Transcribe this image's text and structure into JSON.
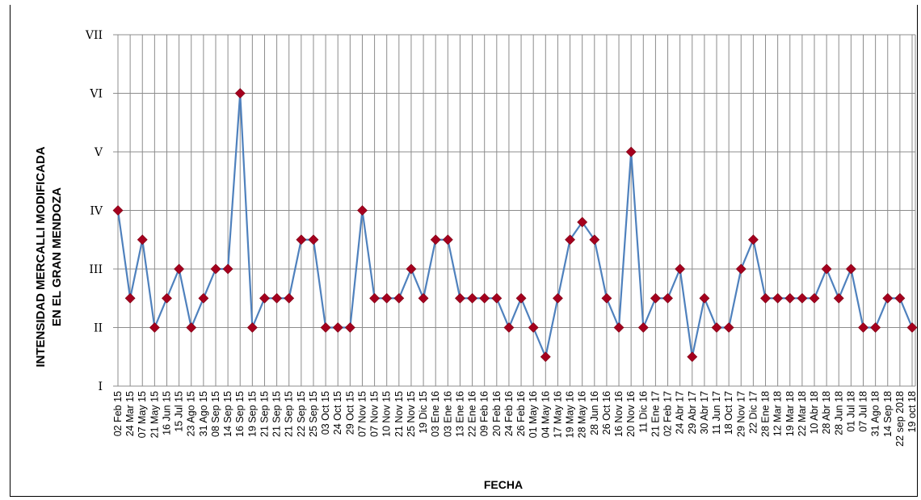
{
  "chart_data": {
    "type": "line",
    "xlabel": "FECHA",
    "ylabel_lines": [
      "INTENSIDAD MERCALLI MODIFICADA",
      "EN EL GRAN MENDOZA"
    ],
    "y_ticks": [
      {
        "value": 1,
        "label": "I"
      },
      {
        "value": 2,
        "label": "II"
      },
      {
        "value": 3,
        "label": "III"
      },
      {
        "value": 4,
        "label": "IV"
      },
      {
        "value": 5,
        "label": "V"
      },
      {
        "value": 6,
        "label": "VI"
      },
      {
        "value": 7,
        "label": "VII"
      }
    ],
    "ylim": [
      1,
      7
    ],
    "grid": true,
    "line_color": "#4f81bd",
    "marker_color": "#a5001e",
    "categories": [
      "02 Feb 15",
      "24 Mar 15",
      "07 May 15",
      "21 May 15",
      "16 Jun 15",
      "15 Jul 15",
      "23 Ago 15",
      "31 Ago 15",
      "08 Sep 15",
      "14 Sep 15",
      "16 Sep 15",
      "19 Sep 15",
      "21 Sep 15",
      "21 Sep 15",
      "21 Sep 15",
      "22 Sep 15",
      "25 Sep 15",
      "03 Oct 15",
      "24 Oct 15",
      "29 Oct 15",
      "07 Nov 15",
      "07 Nov 15",
      "10 Nov 15",
      "21 Nov 15",
      "25 Nov 15",
      "19 Dic 15",
      "03 Ene 16",
      "03 Ene 16",
      "13 Ene 16",
      "22 Ene 16",
      "09 Feb 16",
      "20 Feb 16",
      "24 Feb 16",
      "26 Feb 16",
      "01 May 16",
      "04 May 16",
      "17 May 16",
      "19 May 16",
      "28 May 16",
      "28 Jun 16",
      "26 Oct 16",
      "16 Nov 16",
      "20 Nov 16",
      "11 Dic 16",
      "21 Ene 17",
      "02 Feb 17",
      "24 Abr 17",
      "29 Abr 17",
      "30 Abr 17",
      "11 Jun 17",
      "18 Oct 17",
      "29 Nov 17",
      "22 Dic 17",
      "28 Ene 18",
      "12 Mar 18",
      "19 Mar 18",
      "22 Mar 18",
      "10 Abr 18",
      "28 Abr 18",
      "28 Jun 18",
      "01 Jul 18",
      "07 Jul 18",
      "31 Ago 18",
      "14 Sep 18",
      "22 sep 2018",
      "19 oct 18"
    ],
    "values": [
      4,
      2.5,
      3.5,
      2,
      2.5,
      3,
      2,
      2.5,
      3,
      3,
      6,
      2,
      2.5,
      2.5,
      2.5,
      3.5,
      3.5,
      2,
      2,
      2,
      4,
      2.5,
      2.5,
      2.5,
      3,
      2.5,
      3.5,
      3.5,
      2.5,
      2.5,
      2.5,
      2.5,
      2,
      2.5,
      2,
      1.5,
      2.5,
      3.5,
      3.8,
      3.5,
      2.5,
      2,
      5,
      2,
      2.5,
      2.5,
      3,
      1.5,
      2.5,
      2,
      2,
      3,
      3.5,
      2.5,
      2.5,
      2.5,
      2.5,
      2.5,
      3,
      2.5,
      3,
      2,
      2,
      2.5,
      2.5,
      2
    ]
  }
}
